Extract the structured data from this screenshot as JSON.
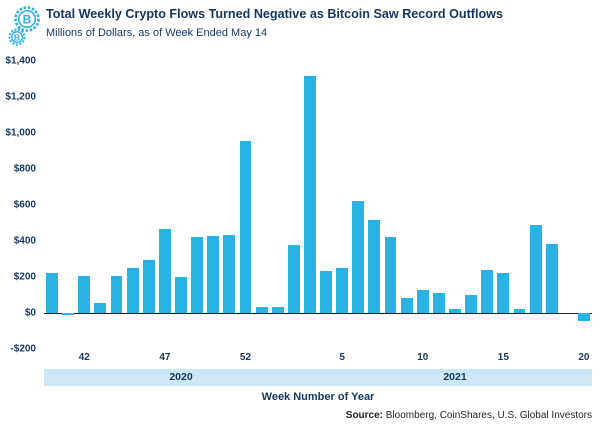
{
  "header": {
    "title": "Total Weekly Crypto Flows Turned Negative as Bitcoin Saw Record Outflows",
    "subtitle": "Millions of Dollars, as of Week Ended May 14"
  },
  "icons": {
    "logo": "bitcoin-coins-icon",
    "logo_color": "#2CB1E5",
    "coin_letter": "B"
  },
  "chart_data": {
    "type": "bar",
    "title": "Total Weekly Crypto Flows Turned Negative as Bitcoin Saw Record Outflows",
    "subtitle": "Millions of Dollars, as of Week Ended May 14",
    "xlabel": "Week Number of Year",
    "ylabel": "Millions of Dollars",
    "bar_color": "#2CB1E5",
    "grid": false,
    "ylim": [
      -200,
      1400
    ],
    "y_ticks": [
      "$1,400",
      "$1,200",
      "$1,000",
      "$800",
      "$600",
      "$400",
      "$200",
      "$0",
      "-$200"
    ],
    "y_tick_values": [
      1400,
      1200,
      1000,
      800,
      600,
      400,
      200,
      0,
      -200
    ],
    "x_ticks": [
      42,
      47,
      52,
      5,
      10,
      15,
      20
    ],
    "year_bands": [
      {
        "label": "2020",
        "weeks": 14
      },
      {
        "label": "2021",
        "weeks": 20
      }
    ],
    "points": [
      {
        "year": 2020,
        "week": 40,
        "value": 220
      },
      {
        "year": 2020,
        "week": 41,
        "value": -10
      },
      {
        "year": 2020,
        "week": 42,
        "value": 205
      },
      {
        "year": 2020,
        "week": 43,
        "value": 55
      },
      {
        "year": 2020,
        "week": 44,
        "value": 205
      },
      {
        "year": 2020,
        "week": 45,
        "value": 250
      },
      {
        "year": 2020,
        "week": 46,
        "value": 295
      },
      {
        "year": 2020,
        "week": 47,
        "value": 465
      },
      {
        "year": 2020,
        "week": 48,
        "value": 200
      },
      {
        "year": 2020,
        "week": 49,
        "value": 425
      },
      {
        "year": 2020,
        "week": 50,
        "value": 430
      },
      {
        "year": 2020,
        "week": 51,
        "value": 435
      },
      {
        "year": 2020,
        "week": 52,
        "value": 955
      },
      {
        "year": 2020,
        "week": 53,
        "value": 35
      },
      {
        "year": 2021,
        "week": 1,
        "value": 35
      },
      {
        "year": 2021,
        "week": 2,
        "value": 380
      },
      {
        "year": 2021,
        "week": 3,
        "value": 1315
      },
      {
        "year": 2021,
        "week": 4,
        "value": 235
      },
      {
        "year": 2021,
        "week": 5,
        "value": 250
      },
      {
        "year": 2021,
        "week": 6,
        "value": 620
      },
      {
        "year": 2021,
        "week": 7,
        "value": 515
      },
      {
        "year": 2021,
        "week": 8,
        "value": 420
      },
      {
        "year": 2021,
        "week": 9,
        "value": 85
      },
      {
        "year": 2021,
        "week": 10,
        "value": 130
      },
      {
        "year": 2021,
        "week": 11,
        "value": 110
      },
      {
        "year": 2021,
        "week": 12,
        "value": 25
      },
      {
        "year": 2021,
        "week": 13,
        "value": 100
      },
      {
        "year": 2021,
        "week": 14,
        "value": 240
      },
      {
        "year": 2021,
        "week": 15,
        "value": 220
      },
      {
        "year": 2021,
        "week": 16,
        "value": 20
      },
      {
        "year": 2021,
        "week": 17,
        "value": 490
      },
      {
        "year": 2021,
        "week": 18,
        "value": 385
      },
      {
        "year": 2021,
        "week": 19,
        "value": 0
      },
      {
        "year": 2021,
        "week": 20,
        "value": -45
      }
    ]
  },
  "footer": {
    "source_label": "Source:",
    "source_text": " Bloomberg, CoinShares, U.S. Global Investors"
  }
}
